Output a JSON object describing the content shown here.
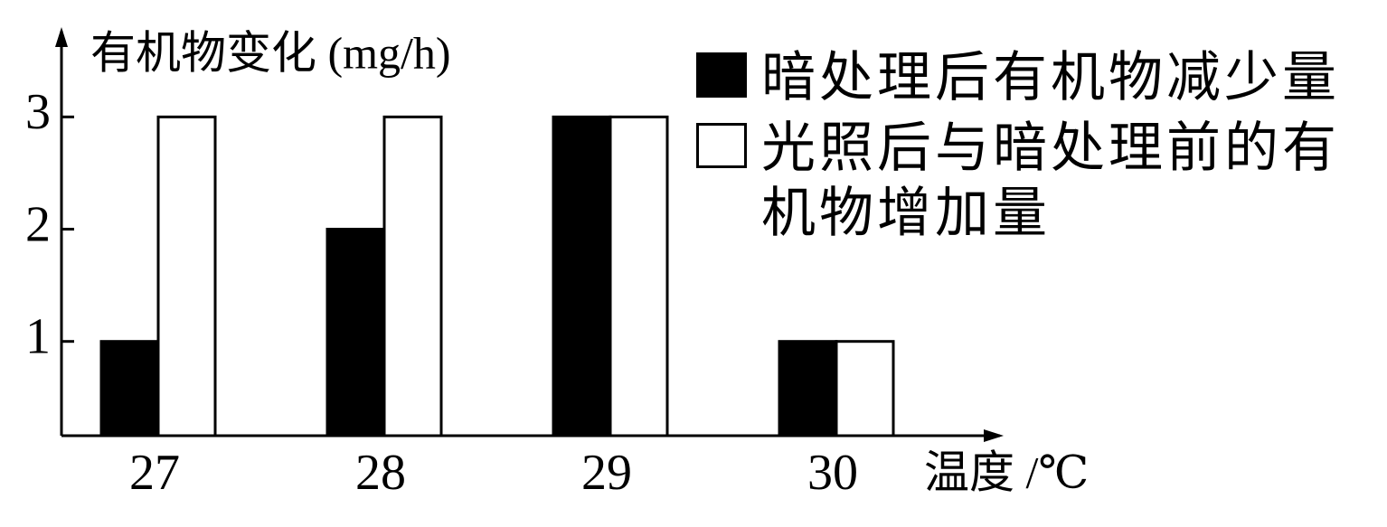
{
  "chart_data": {
    "type": "bar",
    "y_label": "有机物变化 (mg/h)",
    "x_label": "温度 /℃",
    "categories": [
      "27",
      "28",
      "29",
      "30"
    ],
    "series": [
      {
        "name": "暗处理后有机物减少量",
        "color": "#000000",
        "values": [
          1,
          2,
          3,
          1
        ]
      },
      {
        "name": "光照后与暗处理前的有机物增加量",
        "color": "#ffffff",
        "values": [
          3,
          3,
          3,
          1
        ]
      }
    ],
    "ylim": [
      0.16,
      3.8
    ],
    "yticks": [
      1,
      2,
      3
    ],
    "grid": false
  }
}
